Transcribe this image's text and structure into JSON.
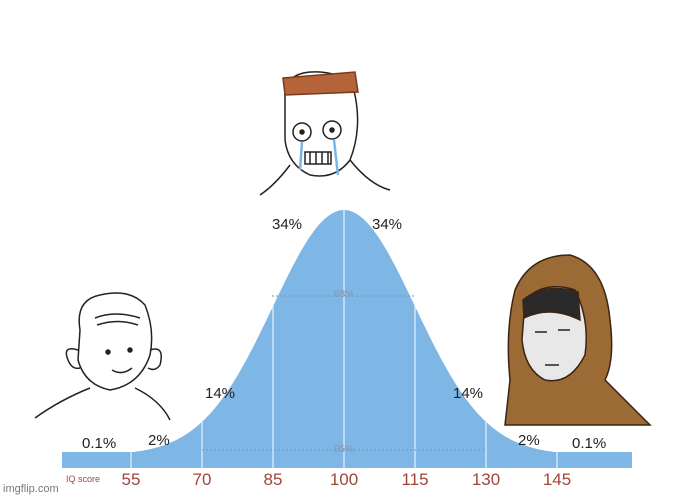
{
  "chart_data": {
    "type": "area",
    "title": "",
    "xlabel": "IQ score",
    "x_ticks": [
      55,
      70,
      85,
      100,
      115,
      130,
      145
    ],
    "mean": 100,
    "sd": 15,
    "segment_labels": [
      "0.1%",
      "2%",
      "14%",
      "34%",
      "34%",
      "14%",
      "2%",
      "0.1%"
    ],
    "inner_labels": [
      "68%",
      "95%"
    ],
    "fill_color": "#7eb6e6"
  },
  "watermark": "imgflip.com",
  "characters": [
    "low-iq-wojak",
    "crying-midwit-wojak",
    "hooded-monk-wojak"
  ]
}
